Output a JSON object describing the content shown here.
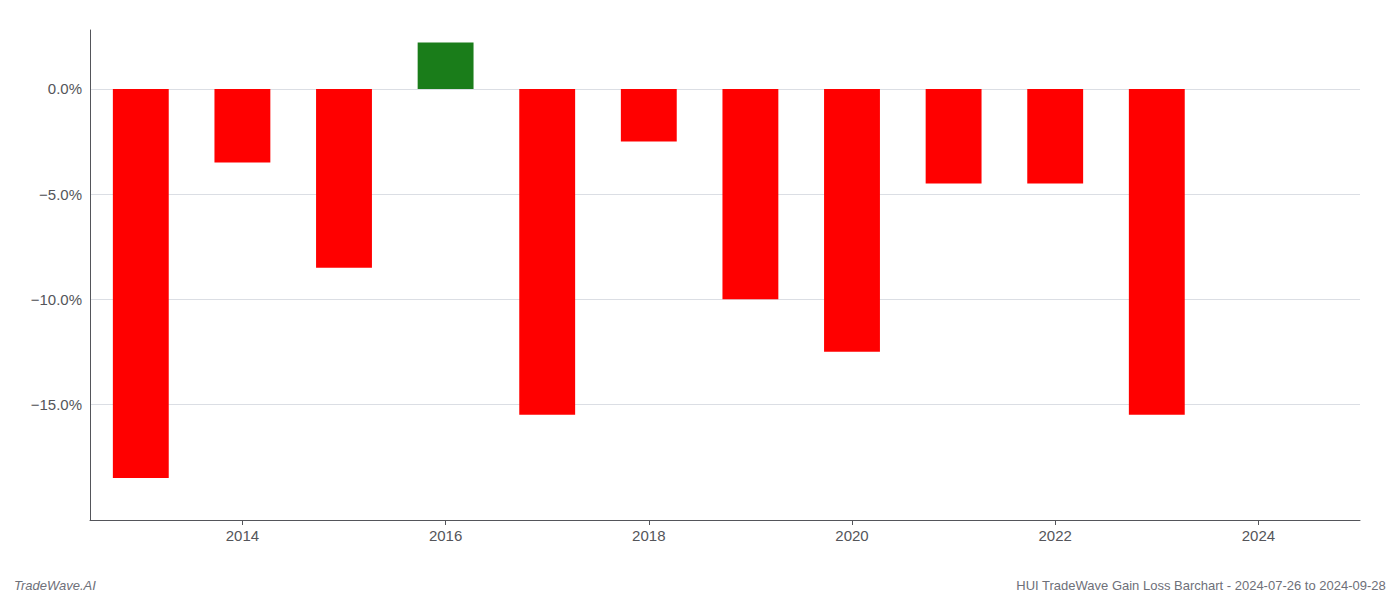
{
  "chart_data": {
    "type": "bar",
    "x": [
      2013,
      2014,
      2015,
      2016,
      2017,
      2018,
      2019,
      2020,
      2021,
      2022,
      2023
    ],
    "values": [
      -18.5,
      -3.5,
      -8.5,
      2.2,
      -15.5,
      -2.5,
      -10.0,
      -12.5,
      -4.5,
      -4.5,
      -15.5
    ],
    "colors": [
      "#ff0000",
      "#ff0000",
      "#ff0000",
      "#1a7d1a",
      "#ff0000",
      "#ff0000",
      "#ff0000",
      "#ff0000",
      "#ff0000",
      "#ff0000",
      "#ff0000"
    ],
    "xlim": [
      2012.5,
      2025.0
    ],
    "xticks": [
      2014,
      2016,
      2018,
      2020,
      2022,
      2024
    ],
    "ylim": [
      -20.5,
      2.8
    ],
    "yticks": [
      {
        "value": 0.0,
        "label": "0.0%"
      },
      {
        "value": -5.0,
        "label": "−5.0%"
      },
      {
        "value": -10.0,
        "label": "−10.0%"
      },
      {
        "value": -15.0,
        "label": "−15.0%"
      }
    ],
    "grid": true,
    "annotations": [
      "TradeWave.AI",
      "HUI TradeWave Gain Loss Barchart - 2024-07-26 to 2024-09-28"
    ]
  }
}
